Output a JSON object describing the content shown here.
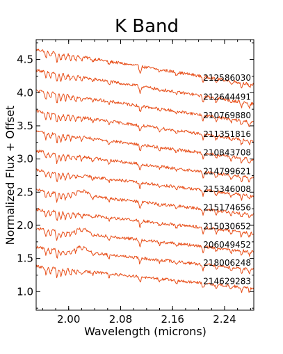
{
  "chart_data": {
    "type": "line",
    "title": "K Band",
    "xlabel": "Wavelength (microns)",
    "ylabel": "Normalized Flux + Offset",
    "xlim": [
      1.95,
      2.285
    ],
    "ylim": [
      0.72,
      4.8
    ],
    "xticks": [
      2.0,
      2.08,
      2.16,
      2.24
    ],
    "xtick_labels": [
      "2.00",
      "2.08",
      "2.16",
      "2.24"
    ],
    "yticks": [
      1.0,
      1.5,
      2.0,
      2.5,
      3.0,
      3.5,
      4.0,
      4.5
    ],
    "ytick_labels": [
      "1.0",
      "1.5",
      "2.0",
      "2.5",
      "3.0",
      "3.5",
      "4.0",
      "4.5"
    ],
    "grid": false,
    "legend": "labels beside each spectrum, right",
    "line_color": "#e8501b",
    "series": [
      {
        "name": "212586030",
        "y_start": 4.65,
        "y_end": 4.12
      },
      {
        "name": "212644491",
        "y_start": 4.34,
        "y_end": 3.83
      },
      {
        "name": "210769880",
        "y_start": 4.03,
        "y_end": 3.55
      },
      {
        "name": "211351816",
        "y_start": 3.72,
        "y_end": 3.27
      },
      {
        "name": "210843708",
        "y_start": 3.42,
        "y_end": 2.99
      },
      {
        "name": "214799621",
        "y_start": 3.12,
        "y_end": 2.71
      },
      {
        "name": "215346008",
        "y_start": 2.83,
        "y_end": 2.44
      },
      {
        "name": "215174656",
        "y_start": 2.53,
        "y_end": 2.16
      },
      {
        "name": "215030652",
        "y_start": 2.24,
        "y_end": 1.88
      },
      {
        "name": "206049452",
        "y_start": 1.95,
        "y_end": 1.6
      },
      {
        "name": "218006248",
        "y_start": 1.67,
        "y_end": 1.33
      },
      {
        "name": "214629283",
        "y_start": 1.38,
        "y_end": 1.05
      }
    ]
  }
}
